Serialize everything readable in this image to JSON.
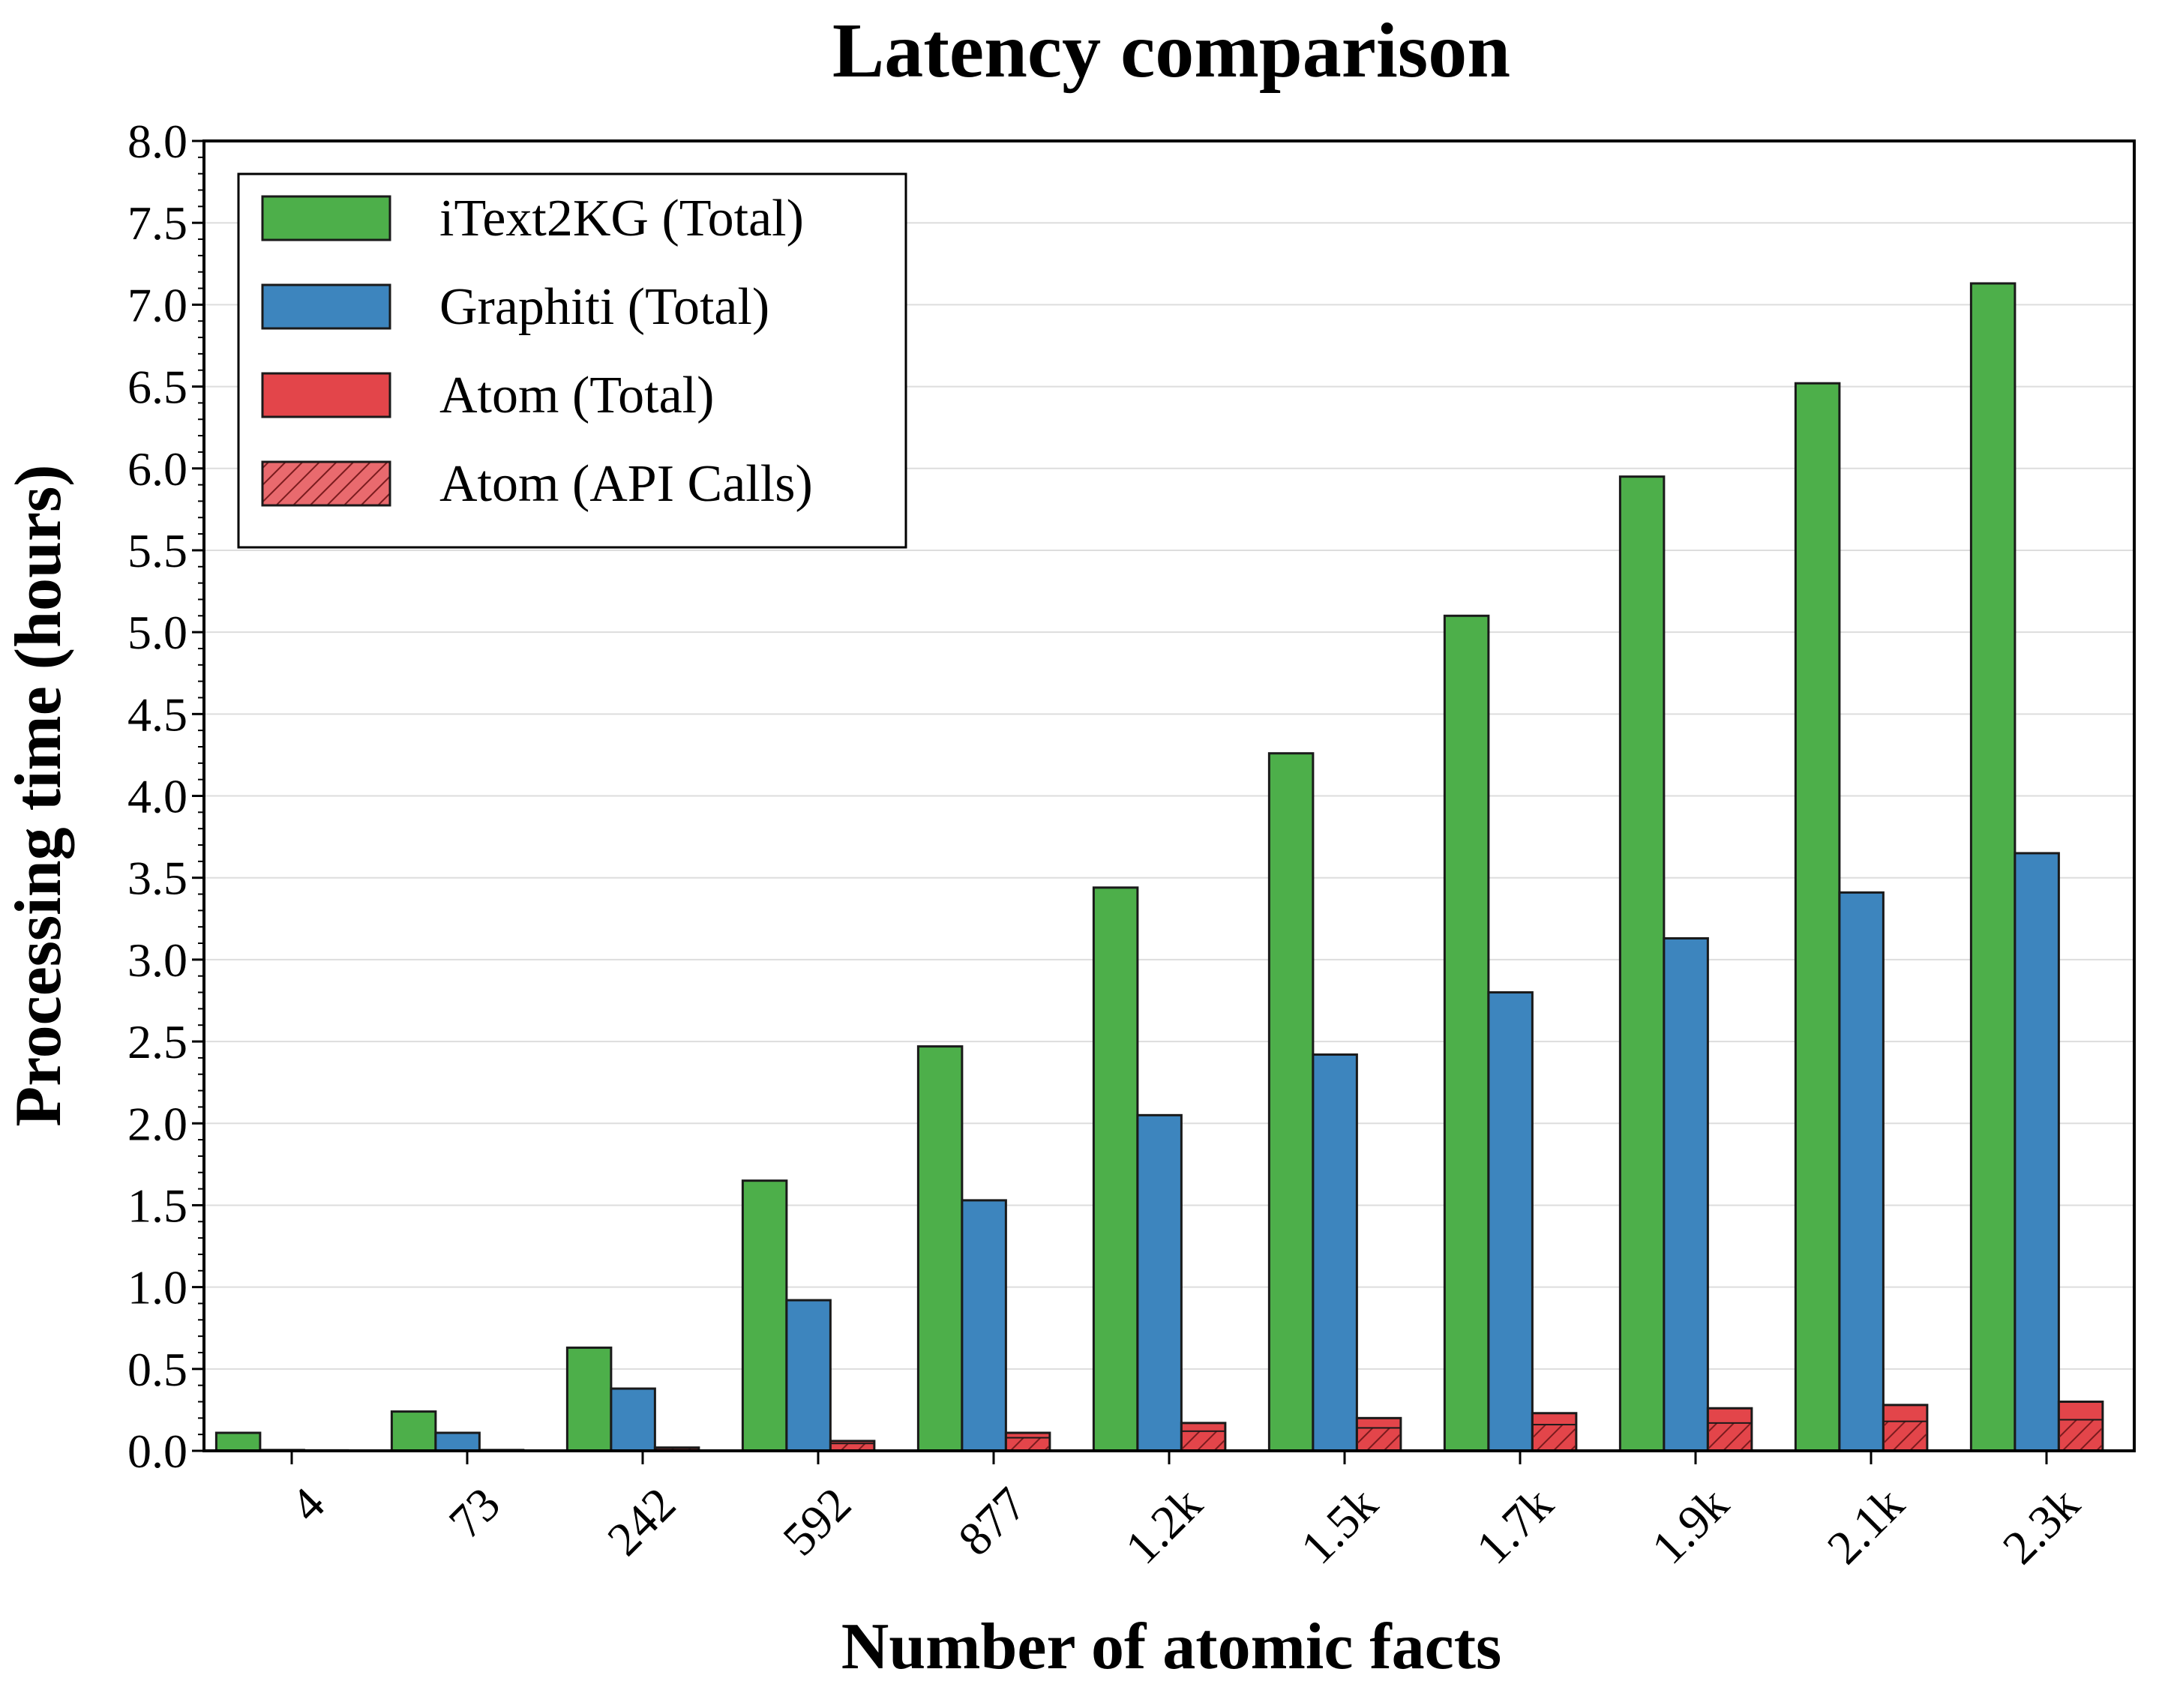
{
  "chart_data": {
    "type": "bar",
    "title": "Latency comparison",
    "xlabel": "Number of atomic facts",
    "ylabel": "Processing time (hours)",
    "categories": [
      "4",
      "73",
      "242",
      "592",
      "877",
      "1.2k",
      "1.5k",
      "1.7k",
      "1.9k",
      "2.1k",
      "2.3k"
    ],
    "ylim": [
      0,
      8.0
    ],
    "yticks": [
      "0.0",
      "0.5",
      "1.0",
      "1.5",
      "2.0",
      "2.5",
      "3.0",
      "3.5",
      "4.0",
      "4.5",
      "5.0",
      "5.5",
      "6.0",
      "6.5",
      "7.0",
      "7.5",
      "8.0"
    ],
    "grid": "horizontal",
    "legend_position": "top-left",
    "series": [
      {
        "name": "iText2KG (Total)",
        "color": "#4daf4a",
        "values": [
          0.11,
          0.24,
          0.63,
          1.65,
          2.47,
          3.44,
          4.26,
          5.1,
          5.95,
          6.52,
          7.13
        ]
      },
      {
        "name": "Graphiti (Total)",
        "color": "#3d85be",
        "values": [
          0.005,
          0.11,
          0.38,
          0.92,
          1.53,
          2.05,
          2.42,
          2.8,
          3.13,
          3.41,
          3.65
        ]
      },
      {
        "name": "Atom (Total)",
        "color": "#e3454a",
        "values": [
          0.003,
          0.005,
          0.02,
          0.06,
          0.11,
          0.17,
          0.2,
          0.23,
          0.26,
          0.28,
          0.3
        ]
      },
      {
        "name": "Atom (API Calls)",
        "color": "#e3454a",
        "pattern": "hatch",
        "values": [
          0.002,
          0.004,
          0.015,
          0.045,
          0.08,
          0.12,
          0.14,
          0.16,
          0.17,
          0.18,
          0.19
        ]
      }
    ]
  }
}
